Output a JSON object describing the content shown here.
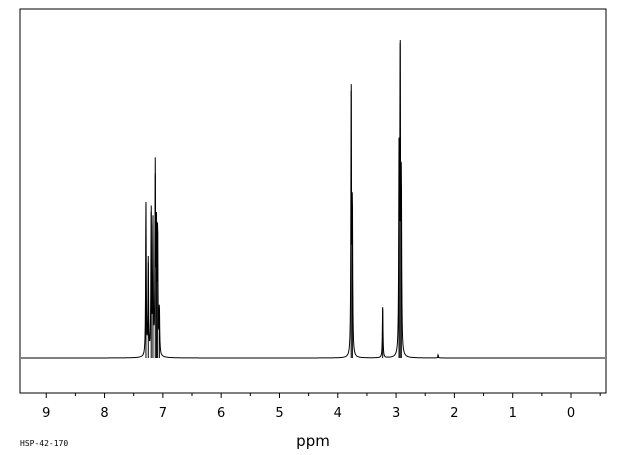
{
  "chart_data": {
    "type": "line",
    "title": "",
    "xlabel": "ppm",
    "ylabel": "",
    "xlim": [
      9.45,
      -0.6
    ],
    "ylim": [
      0,
      1.0
    ],
    "x_reversed": true,
    "grid": false,
    "xticks_major": [
      9,
      8,
      7,
      6,
      5,
      4,
      3,
      2,
      1,
      0
    ],
    "xtick_labels": [
      "9",
      "8",
      "7",
      "6",
      "5",
      "4",
      "3",
      "2",
      "1",
      "0"
    ],
    "series": [
      {
        "peaks": [
          {
            "ppm": 7.29,
            "height": 0.49
          },
          {
            "ppm": 7.25,
            "height": 0.3
          },
          {
            "ppm": 7.2,
            "height": 0.46
          },
          {
            "ppm": 7.17,
            "height": 0.42
          },
          {
            "ppm": 7.13,
            "height": 0.58
          },
          {
            "ppm": 7.11,
            "height": 0.38
          },
          {
            "ppm": 7.09,
            "height": 0.4
          },
          {
            "ppm": 7.06,
            "height": 0.15
          },
          {
            "ppm": 3.77,
            "height": 0.84
          },
          {
            "ppm": 3.75,
            "height": 0.48
          },
          {
            "ppm": 3.23,
            "height": 0.16
          },
          {
            "ppm": 2.95,
            "height": 0.6
          },
          {
            "ppm": 2.93,
            "height": 0.99
          },
          {
            "ppm": 2.91,
            "height": 0.54
          },
          {
            "ppm": 2.28,
            "height": 0.01
          }
        ]
      }
    ]
  },
  "sample_id": "HSP-42-170"
}
